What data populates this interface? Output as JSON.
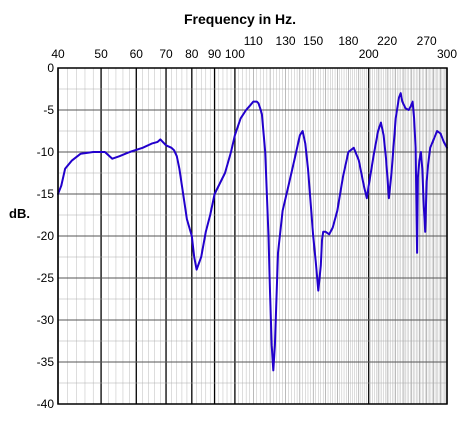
{
  "chart_data": {
    "type": "line",
    "title": "Frequency in Hz.",
    "xlabel": "",
    "ylabel": "dB.",
    "xscale": "log",
    "xlim": [
      40,
      300
    ],
    "ylim": [
      -40,
      0
    ],
    "grid": true,
    "legend": "none",
    "x_ticks_lower": [
      40,
      50,
      60,
      70,
      80,
      90,
      100,
      200,
      300
    ],
    "x_ticks_upper": [
      110,
      130,
      150,
      180,
      220,
      270
    ],
    "y_ticks": [
      0,
      -5,
      -10,
      -15,
      -20,
      -25,
      -30,
      -35,
      -40
    ],
    "series": [
      {
        "name": "",
        "color": "#2200cc",
        "x": [
          40,
          40.7,
          41.5,
          43,
          45,
          48,
          50,
          51,
          53,
          55,
          58,
          62,
          65,
          67,
          68,
          70,
          72,
          73,
          74,
          75,
          77,
          78,
          80,
          81,
          82,
          84,
          86,
          88,
          90,
          95,
          98,
          100,
          103,
          106,
          108,
          110,
          112,
          113,
          114,
          115,
          117,
          119,
          120,
          121,
          122,
          123,
          125,
          128,
          132,
          136,
          140,
          142,
          144,
          146,
          150,
          152,
          154,
          156,
          157,
          158,
          160,
          163,
          166,
          170,
          175,
          180,
          185,
          190,
          195,
          198,
          200,
          205,
          210,
          213,
          216,
          219,
          222,
          225,
          230,
          234,
          236,
          238,
          242,
          246,
          249,
          251,
          253,
          255,
          256,
          257,
          258,
          260,
          262,
          264,
          266,
          268,
          270,
          272,
          275,
          280,
          285,
          290,
          295,
          300
        ],
        "values": [
          -15,
          -14,
          -12,
          -11,
          -10.2,
          -10,
          -10,
          -10,
          -10.8,
          -10.5,
          -10,
          -9.5,
          -9,
          -8.8,
          -8.5,
          -9.2,
          -9.5,
          -9.8,
          -10.5,
          -12,
          -16,
          -18,
          -20,
          -22.5,
          -24,
          -22.5,
          -19.5,
          -17.5,
          -15,
          -12.5,
          -10,
          -8,
          -6,
          -5,
          -4.5,
          -4,
          -4,
          -4.2,
          -4.8,
          -5.5,
          -10,
          -20,
          -27,
          -33,
          -36,
          -33,
          -22,
          -17,
          -14,
          -11,
          -8,
          -7.5,
          -9,
          -12,
          -20,
          -23,
          -26.5,
          -23.5,
          -20.5,
          -19.5,
          -19.5,
          -19.8,
          -19,
          -17,
          -13,
          -10,
          -9.5,
          -11,
          -14,
          -15.5,
          -14,
          -10.5,
          -7.5,
          -6.5,
          -8,
          -11,
          -15.5,
          -12.5,
          -6,
          -3.5,
          -3,
          -4,
          -4.8,
          -5,
          -4.5,
          -4,
          -6,
          -9.5,
          -16,
          -22,
          -13,
          -11,
          -10,
          -12,
          -16.5,
          -19.5,
          -13.5,
          -11.5,
          -9.5,
          -8.5,
          -7.5,
          -7.8,
          -8.8,
          -9.5
        ]
      }
    ]
  }
}
